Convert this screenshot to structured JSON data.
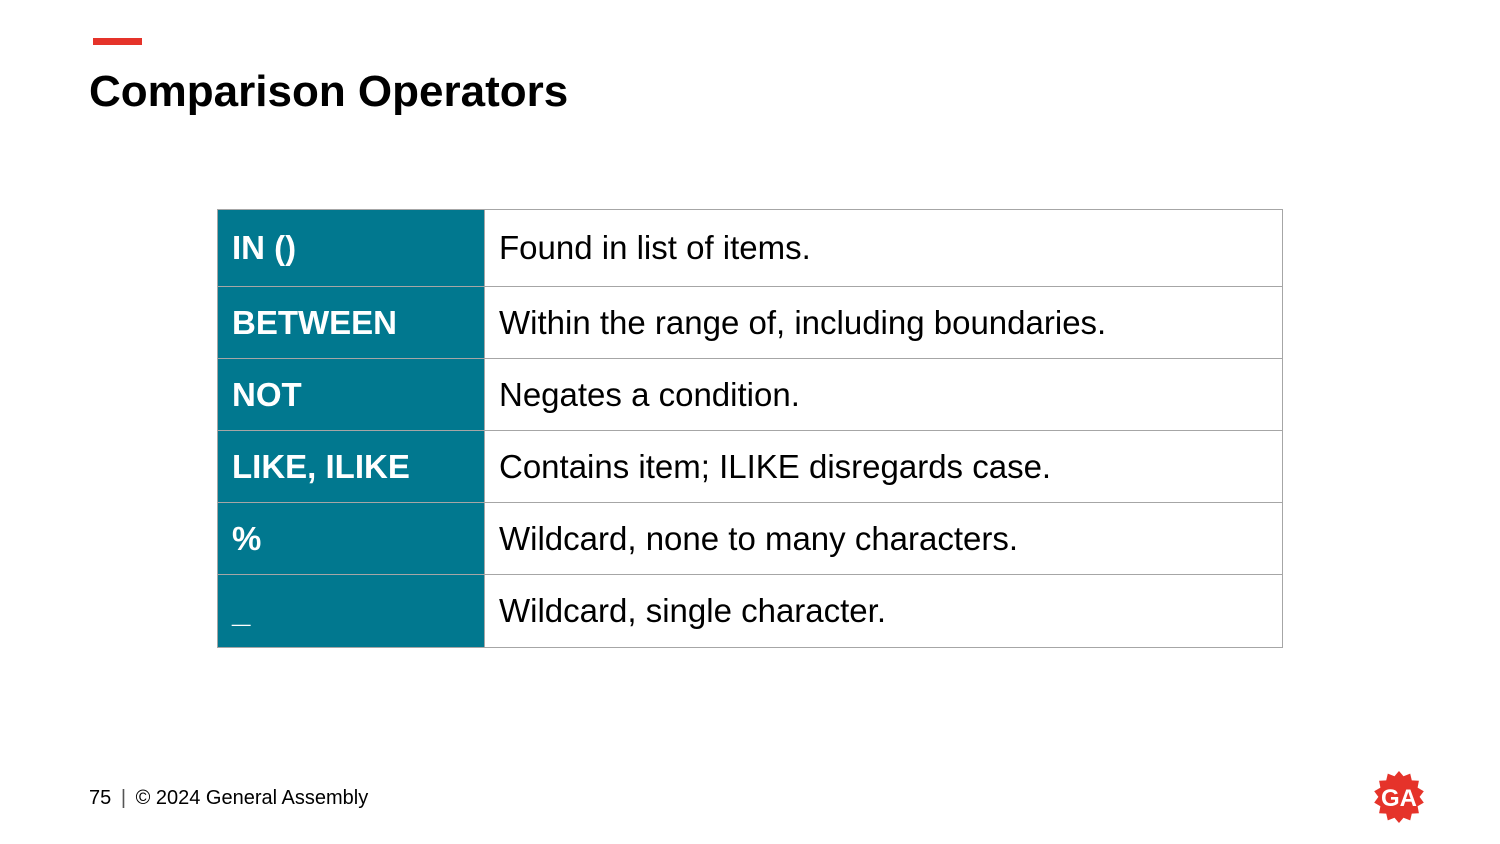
{
  "slide": {
    "title": "Comparison Operators",
    "accent_color": "#e5332a",
    "operator_cell_color": "#01788f"
  },
  "table": {
    "rows": [
      {
        "operator": "IN ()",
        "description": "Found in list of items."
      },
      {
        "operator": "BETWEEN",
        "description": "Within the range of, including boundaries."
      },
      {
        "operator": "NOT",
        "description": "Negates a condition."
      },
      {
        "operator": "LIKE, ILIKE",
        "description": "Contains item; ILIKE disregards case."
      },
      {
        "operator": "%",
        "description": "Wildcard, none to many characters."
      },
      {
        "operator": "_",
        "description": "Wildcard, single character."
      }
    ]
  },
  "footer": {
    "page_number": "75",
    "separator": "|",
    "copyright": "© 2024 General Assembly"
  },
  "logo": {
    "text": "GA",
    "icon": "general-assembly-logo-icon",
    "color": "#e5332a"
  }
}
